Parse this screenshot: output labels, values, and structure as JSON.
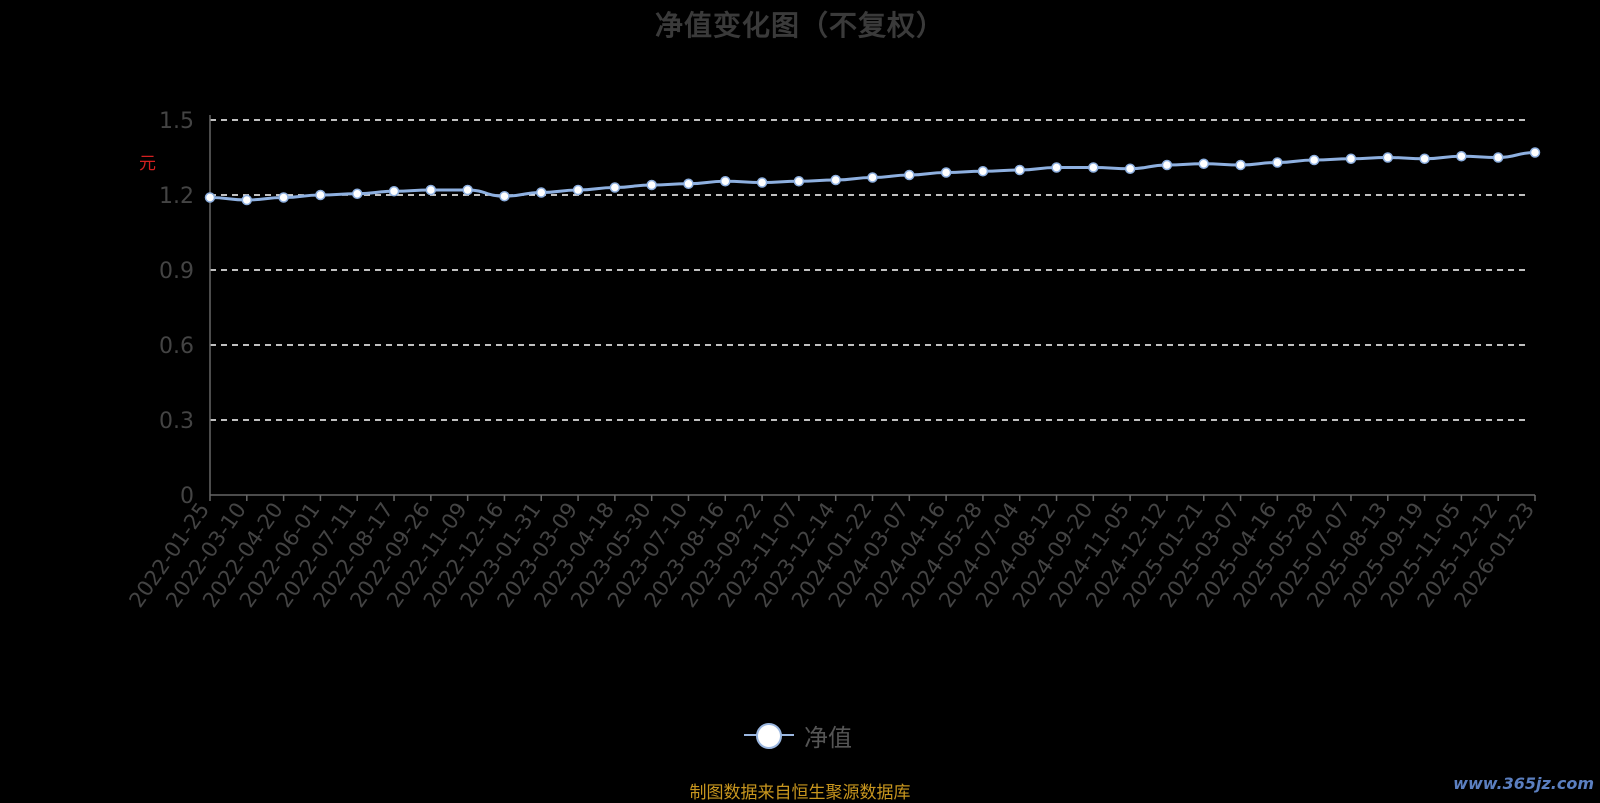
{
  "title": "净值变化图（不复权）",
  "source_note": "制图数据来自恒生聚源数据库",
  "watermark": "www.365jz.com",
  "colors": {
    "background": "#000000",
    "line": "#8eb0e0",
    "point_fill": "#ffffff",
    "grid": "#ffffff",
    "axis": "#666666",
    "tick_label": "#444444",
    "title": "#3a3a3a",
    "source": "#c8961e",
    "unit": "#d42020"
  },
  "legend_icon": "circle-marker-icon",
  "chart_data": {
    "type": "line",
    "title": "净值变化图（不复权）",
    "ylabel": "元",
    "ylim": [
      0,
      1.5
    ],
    "yticks": [
      0,
      0.3,
      0.6,
      0.9,
      1.2,
      1.5
    ],
    "grid": "horizontal-dashed",
    "legend_placement": "bottom-center",
    "categories": [
      "2022-01-25",
      "2022-03-10",
      "2022-04-20",
      "2022-06-01",
      "2022-07-11",
      "2022-08-17",
      "2022-09-26",
      "2022-11-09",
      "2022-12-16",
      "2023-01-31",
      "2023-03-09",
      "2023-04-18",
      "2023-05-30",
      "2023-07-10",
      "2023-08-16",
      "2023-09-22",
      "2023-11-07",
      "2023-12-14",
      "2024-01-22",
      "2024-03-07",
      "2024-04-16",
      "2024-05-28",
      "2024-07-04",
      "2024-08-12",
      "2024-09-20",
      "2024-11-05",
      "2024-12-12",
      "2025-01-21",
      "2025-03-07",
      "2025-04-16",
      "2025-05-28",
      "2025-07-07",
      "2025-08-13",
      "2025-09-19",
      "2025-11-05",
      "2025-12-12",
      "2026-01-23"
    ],
    "series": [
      {
        "name": "净值",
        "values": [
          1.19,
          1.18,
          1.19,
          1.2,
          1.205,
          1.215,
          1.22,
          1.22,
          1.195,
          1.21,
          1.22,
          1.23,
          1.24,
          1.245,
          1.255,
          1.25,
          1.255,
          1.26,
          1.27,
          1.28,
          1.29,
          1.295,
          1.3,
          1.31,
          1.31,
          1.305,
          1.32,
          1.325,
          1.32,
          1.33,
          1.34,
          1.345,
          1.35,
          1.345,
          1.355,
          1.35,
          1.37
        ]
      }
    ]
  }
}
